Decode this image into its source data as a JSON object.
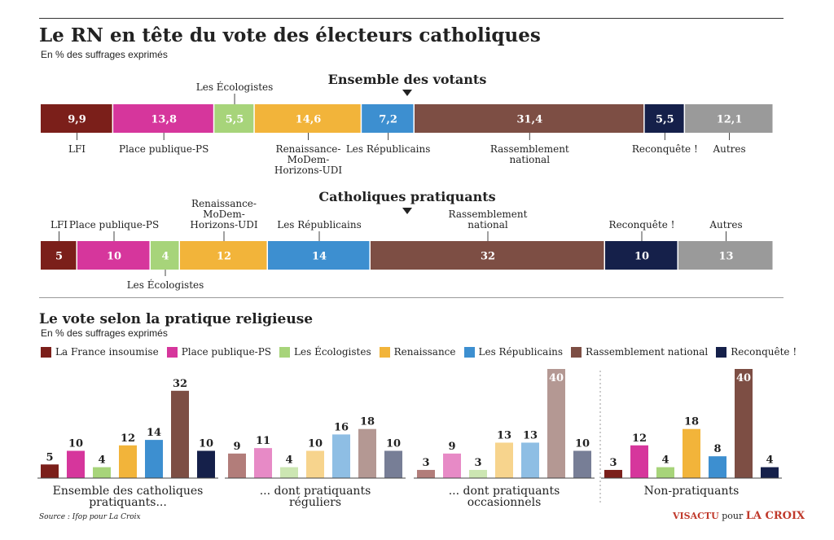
{
  "title": "Le RN en tête du vote des électeurs catholiques",
  "subtitle": "En % des suffrages exprimés",
  "section2": {
    "title": "Le vote selon la pratique religieuse",
    "subtitle": "En % des suffrages exprimés"
  },
  "legend": [
    {
      "label": "La France insoumise",
      "color": "#7b1f1a"
    },
    {
      "label": "Place publique-PS",
      "color": "#d6369c"
    },
    {
      "label": "Les Écologistes",
      "color": "#a7d47a"
    },
    {
      "label": "Renaissance",
      "color": "#f2b43a"
    },
    {
      "label": "Les Républicains",
      "color": "#3d8fd0"
    },
    {
      "label": "Rassemblement national",
      "color": "#7d4e44"
    },
    {
      "label": "Reconquête !",
      "color": "#15204a"
    }
  ],
  "source": "Source : Ifop pour La Croix",
  "credit": {
    "brand1": "VISACTU",
    "word": "pour",
    "brand2": "LA CROIX"
  },
  "chart_data": [
    {
      "type": "bar",
      "stacked": true,
      "title": "Ensemble des votants",
      "categories": [
        "LFI",
        "Place publique-PS",
        "Les Écologistes",
        "Renaissance-MoDem-Horizons-UDI",
        "Les Républicains",
        "Rassemblement national",
        "Reconquête !",
        "Autres"
      ],
      "values": [
        9.9,
        13.8,
        5.5,
        14.6,
        7.2,
        31.4,
        5.5,
        12.1
      ],
      "value_labels": [
        "9,9",
        "13,8",
        "5,5",
        "14,6",
        "7,2",
        "31,4",
        "5,5",
        "12,1"
      ],
      "colors": [
        "#7b1f1a",
        "#d6369c",
        "#a7d47a",
        "#f2b43a",
        "#3d8fd0",
        "#7d4e44",
        "#15204a",
        "#9a9a9a"
      ],
      "label_lines": [
        [
          "LFI"
        ],
        [
          "Place publique-PS"
        ],
        [
          "Les Écologistes"
        ],
        [
          "Renaissance-",
          "MoDem-",
          "Horizons-UDI"
        ],
        [
          "Les Républicains"
        ],
        [
          "Rassemblement",
          "national"
        ],
        [
          "Reconquête !"
        ],
        [
          "Autres"
        ]
      ],
      "label_side": [
        "below",
        "below",
        "above",
        "below",
        "below",
        "below",
        "below",
        "below"
      ]
    },
    {
      "type": "bar",
      "stacked": true,
      "title": "Catholiques pratiquants",
      "categories": [
        "LFI",
        "Place publique-PS",
        "Les Écologistes",
        "Renaissance-MoDem-Horizons-UDI",
        "Les Républicains",
        "Rassemblement national",
        "Reconquête !",
        "Autres"
      ],
      "values": [
        5,
        10,
        4,
        12,
        14,
        32,
        10,
        13
      ],
      "value_labels": [
        "5",
        "10",
        "4",
        "12",
        "14",
        "32",
        "10",
        "13"
      ],
      "colors": [
        "#7b1f1a",
        "#d6369c",
        "#a7d47a",
        "#f2b43a",
        "#3d8fd0",
        "#7d4e44",
        "#15204a",
        "#9a9a9a"
      ],
      "label_lines": [
        [
          "LFI"
        ],
        [
          "Place publique-PS"
        ],
        [
          "Les Écologistes"
        ],
        [
          "Renaissance-",
          "MoDem-",
          "Horizons-UDI"
        ],
        [
          "Les Républicains"
        ],
        [
          "Rassemblement",
          "national"
        ],
        [
          "Reconquête !"
        ],
        [
          "Autres"
        ]
      ],
      "label_side": [
        "above",
        "above",
        "below",
        "above",
        "above",
        "above",
        "above",
        "above"
      ]
    },
    {
      "type": "bar",
      "title": "Le vote selon la pratique religieuse",
      "series_names": [
        "La France insoumise",
        "Place publique-PS",
        "Les Écologistes",
        "Renaissance",
        "Les Républicains",
        "Rassemblement national",
        "Reconquête !"
      ],
      "ylim": [
        0,
        40
      ],
      "groups": [
        {
          "label_lines": [
            "Ensemble des catholiques",
            "pratiquants..."
          ],
          "values": [
            5,
            10,
            4,
            12,
            14,
            32,
            10
          ],
          "faded": false
        },
        {
          "label_lines": [
            "... dont pratiquants",
            "réguliers"
          ],
          "values": [
            9,
            11,
            4,
            10,
            16,
            18,
            10
          ],
          "faded": true
        },
        {
          "label_lines": [
            "... dont pratiquants",
            "occasionnels"
          ],
          "values": [
            3,
            9,
            3,
            13,
            13,
            40,
            10
          ],
          "faded": true
        },
        {
          "label_lines": [
            "Non-pratiquants"
          ],
          "values": [
            3,
            12,
            4,
            18,
            8,
            40,
            4
          ],
          "faded": false
        }
      ]
    }
  ]
}
